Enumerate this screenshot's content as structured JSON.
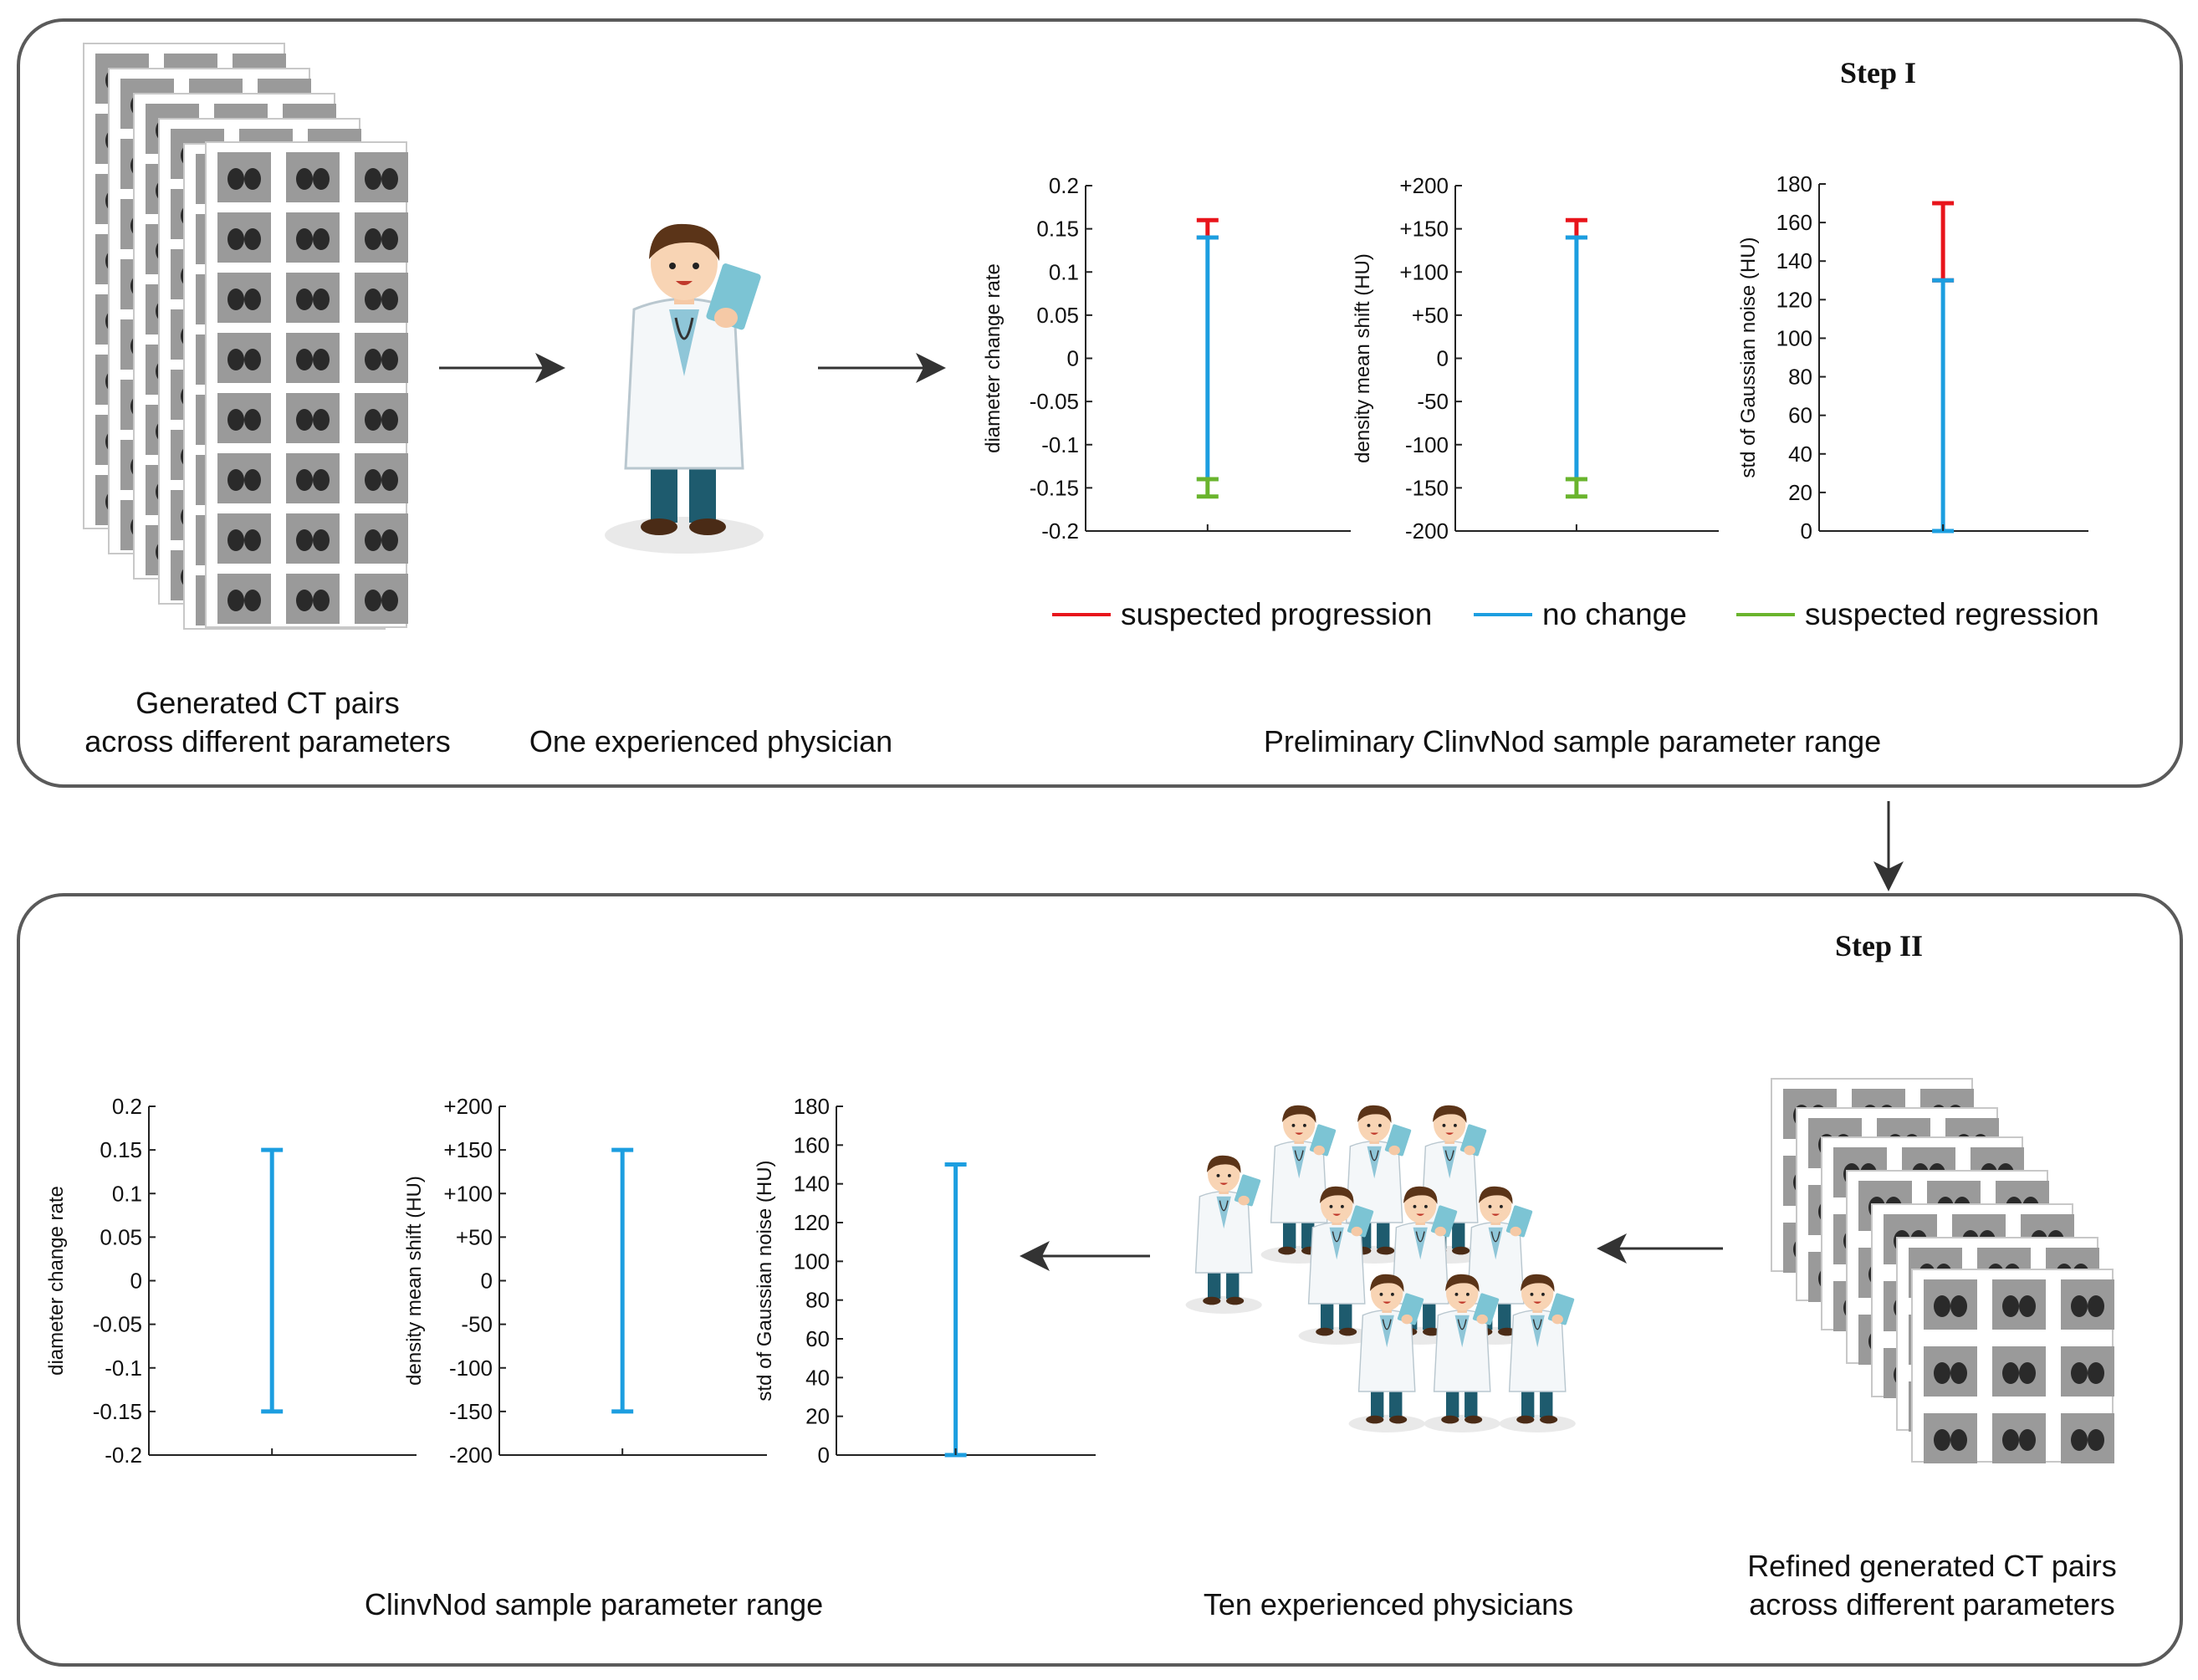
{
  "step1": {
    "title": "Step I",
    "caption_ct_line1": "Generated CT pairs",
    "caption_ct_line2": "across different parameters",
    "caption_physician": "One experienced physician",
    "caption_range": "Preliminary ClinvNod sample parameter range"
  },
  "step2": {
    "title": "Step II",
    "caption_range": "ClinvNod sample parameter range",
    "caption_physicians": "Ten experienced physicians",
    "caption_ct_line1": "Refined generated CT pairs",
    "caption_ct_line2": "across different parameters"
  },
  "legend": {
    "progression": "suspected progression",
    "no_change": "no change",
    "regression": "suspected regression"
  },
  "colors": {
    "progression": "#e8141b",
    "no_change": "#1c9ee0",
    "regression": "#6ab42d",
    "axis": "#222222",
    "panel_border": "#5a5a5a"
  },
  "icons": [
    "ct-slice-stack-icon",
    "doctor-icon",
    "arrow-icon"
  ],
  "chart_data": [
    {
      "type": "range",
      "panel": "step1",
      "ylabel": "diameter change rate",
      "yticks": [
        "0.2",
        "0.15",
        "0.1",
        "0.05",
        "0",
        "-0.05",
        "-0.1",
        "-0.15",
        "-0.2"
      ],
      "ylim": [
        -0.2,
        0.2
      ],
      "series": [
        {
          "name": "suspected progression",
          "range": [
            0.14,
            0.16
          ]
        },
        {
          "name": "no change",
          "range": [
            -0.14,
            0.14
          ]
        },
        {
          "name": "suspected regression",
          "range": [
            -0.16,
            -0.14
          ]
        }
      ]
    },
    {
      "type": "range",
      "panel": "step1",
      "ylabel": "density mean shift (HU)",
      "yticks": [
        "+200",
        "+150",
        "+100",
        "+50",
        "0",
        "-50",
        "-100",
        "-150",
        "-200"
      ],
      "ylim": [
        -200,
        200
      ],
      "series": [
        {
          "name": "suspected progression",
          "range": [
            140,
            160
          ]
        },
        {
          "name": "no change",
          "range": [
            -140,
            140
          ]
        },
        {
          "name": "suspected regression",
          "range": [
            -160,
            -140
          ]
        }
      ]
    },
    {
      "type": "range",
      "panel": "step1",
      "ylabel": "std of  Gaussian noise (HU)",
      "yticks": [
        "180",
        "160",
        "140",
        "120",
        "100",
        "80",
        "60",
        "40",
        "20",
        "0"
      ],
      "ylim": [
        0,
        180
      ],
      "series": [
        {
          "name": "suspected progression",
          "range": [
            130,
            170
          ]
        },
        {
          "name": "no change",
          "range": [
            0,
            130
          ]
        }
      ]
    },
    {
      "type": "range",
      "panel": "step2",
      "ylabel": "diameter change rate",
      "yticks": [
        "0.2",
        "0.15",
        "0.1",
        "0.05",
        "0",
        "-0.05",
        "-0.1",
        "-0.15",
        "-0.2"
      ],
      "ylim": [
        -0.2,
        0.2
      ],
      "series": [
        {
          "name": "no change",
          "range": [
            -0.15,
            0.15
          ]
        }
      ]
    },
    {
      "type": "range",
      "panel": "step2",
      "ylabel": "density mean shift  (HU)",
      "yticks": [
        "+200",
        "+150",
        "+100",
        "+50",
        "0",
        "-50",
        "-100",
        "-150",
        "-200"
      ],
      "ylim": [
        -200,
        200
      ],
      "series": [
        {
          "name": "no change",
          "range": [
            -150,
            150
          ]
        }
      ]
    },
    {
      "type": "range",
      "panel": "step2",
      "ylabel": "std of  Gaussian noise (HU)",
      "yticks": [
        "180",
        "160",
        "140",
        "120",
        "100",
        "80",
        "60",
        "40",
        "20",
        "0"
      ],
      "ylim": [
        0,
        180
      ],
      "series": [
        {
          "name": "no change",
          "range": [
            0,
            150
          ]
        }
      ]
    }
  ]
}
